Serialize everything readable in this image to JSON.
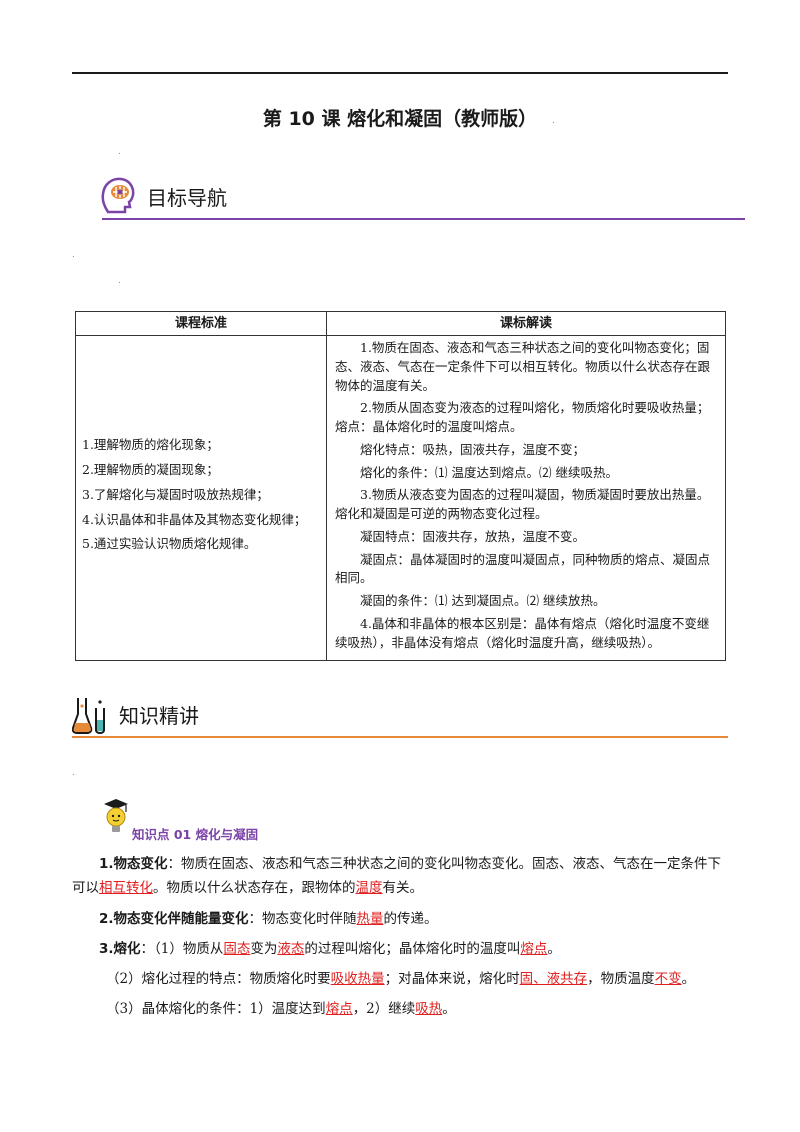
{
  "doc": {
    "title": "第 10 课    熔化和凝固（教师版）"
  },
  "sections": {
    "goals": "目标导航",
    "knowledge": "知识精讲"
  },
  "table": {
    "headers": [
      "课程标准",
      "课标解读"
    ],
    "standards": [
      "1.理解物质的熔化现象；",
      "2.理解物质的凝固现象；",
      "3.了解熔化与凝固时吸放热规律；",
      "4.认识晶体和非晶体及其物态变化规律；",
      "5.通过实验认识物质熔化规律。"
    ],
    "interpretation": [
      "1.物质在固态、液态和气态三种状态之间的变化叫物态变化；固态、液态、气态在一定条件下可以相互转化。物质以什么状态存在跟物体的温度有关。",
      "2.物质从固态变为液态的过程叫熔化，物质熔化时要吸收热量；熔点：晶体熔化时的温度叫熔点。",
      "熔化特点：吸热，固液共存，温度不变；",
      "熔化的条件：⑴ 温度达到熔点。⑵ 继续吸热。",
      "3.物质从液态变为固态的过程叫凝固，物质凝固时要放出热量。熔化和凝固是可逆的两物态变化过程。",
      "凝固特点：固液共存，放热，温度不变。",
      "凝固点：晶体凝固时的温度叫凝固点，同种物质的熔点、凝固点相同。",
      "凝固的条件：⑴ 达到凝固点。⑵ 继续放热。",
      "4.晶体和非晶体的根本区别是：晶体有熔点（熔化时温度不变继续吸热），非晶体没有熔点（熔化时温度升高，继续吸热）。"
    ]
  },
  "knowledge_point": {
    "label": "知识点 01    熔化与凝固"
  },
  "body": {
    "p1": {
      "lead": "1.物态变化",
      "t1": "：物质在固态、液态和气态三种状态之间的变化叫物态变化。固态、液态、气态在一定条件下可以",
      "b1": "相互转化",
      "t2": "。物质以什么状态存在，跟物体的",
      "b2": "温度",
      "t3": "有关。"
    },
    "p2": {
      "lead": "2.物态变化伴随能量变化",
      "t1": "：物态变化时伴随",
      "b1": "热量",
      "t2": "的传递。"
    },
    "p3": {
      "lead": "3.熔化",
      "t1": "：（1）物质从",
      "b1": "固态",
      "t2": "变为",
      "b2": "液态",
      "t3": "的过程叫熔化；晶体熔化时的温度叫",
      "b3": "熔点",
      "t4": "。"
    },
    "p4": {
      "t1": "（2）熔化过程的特点：物质熔化时要",
      "b1": "吸收热量",
      "t2": "；对晶体来说，熔化时",
      "b2": "固、液共存",
      "t3": "，物质温度",
      "b3": "不变",
      "t4": "。"
    },
    "p5": {
      "t1": "（3）晶体熔化的条件：1）温度达到",
      "b1": "熔点",
      "t2": "，2）继续",
      "b2": "吸热",
      "t3": "。"
    }
  }
}
